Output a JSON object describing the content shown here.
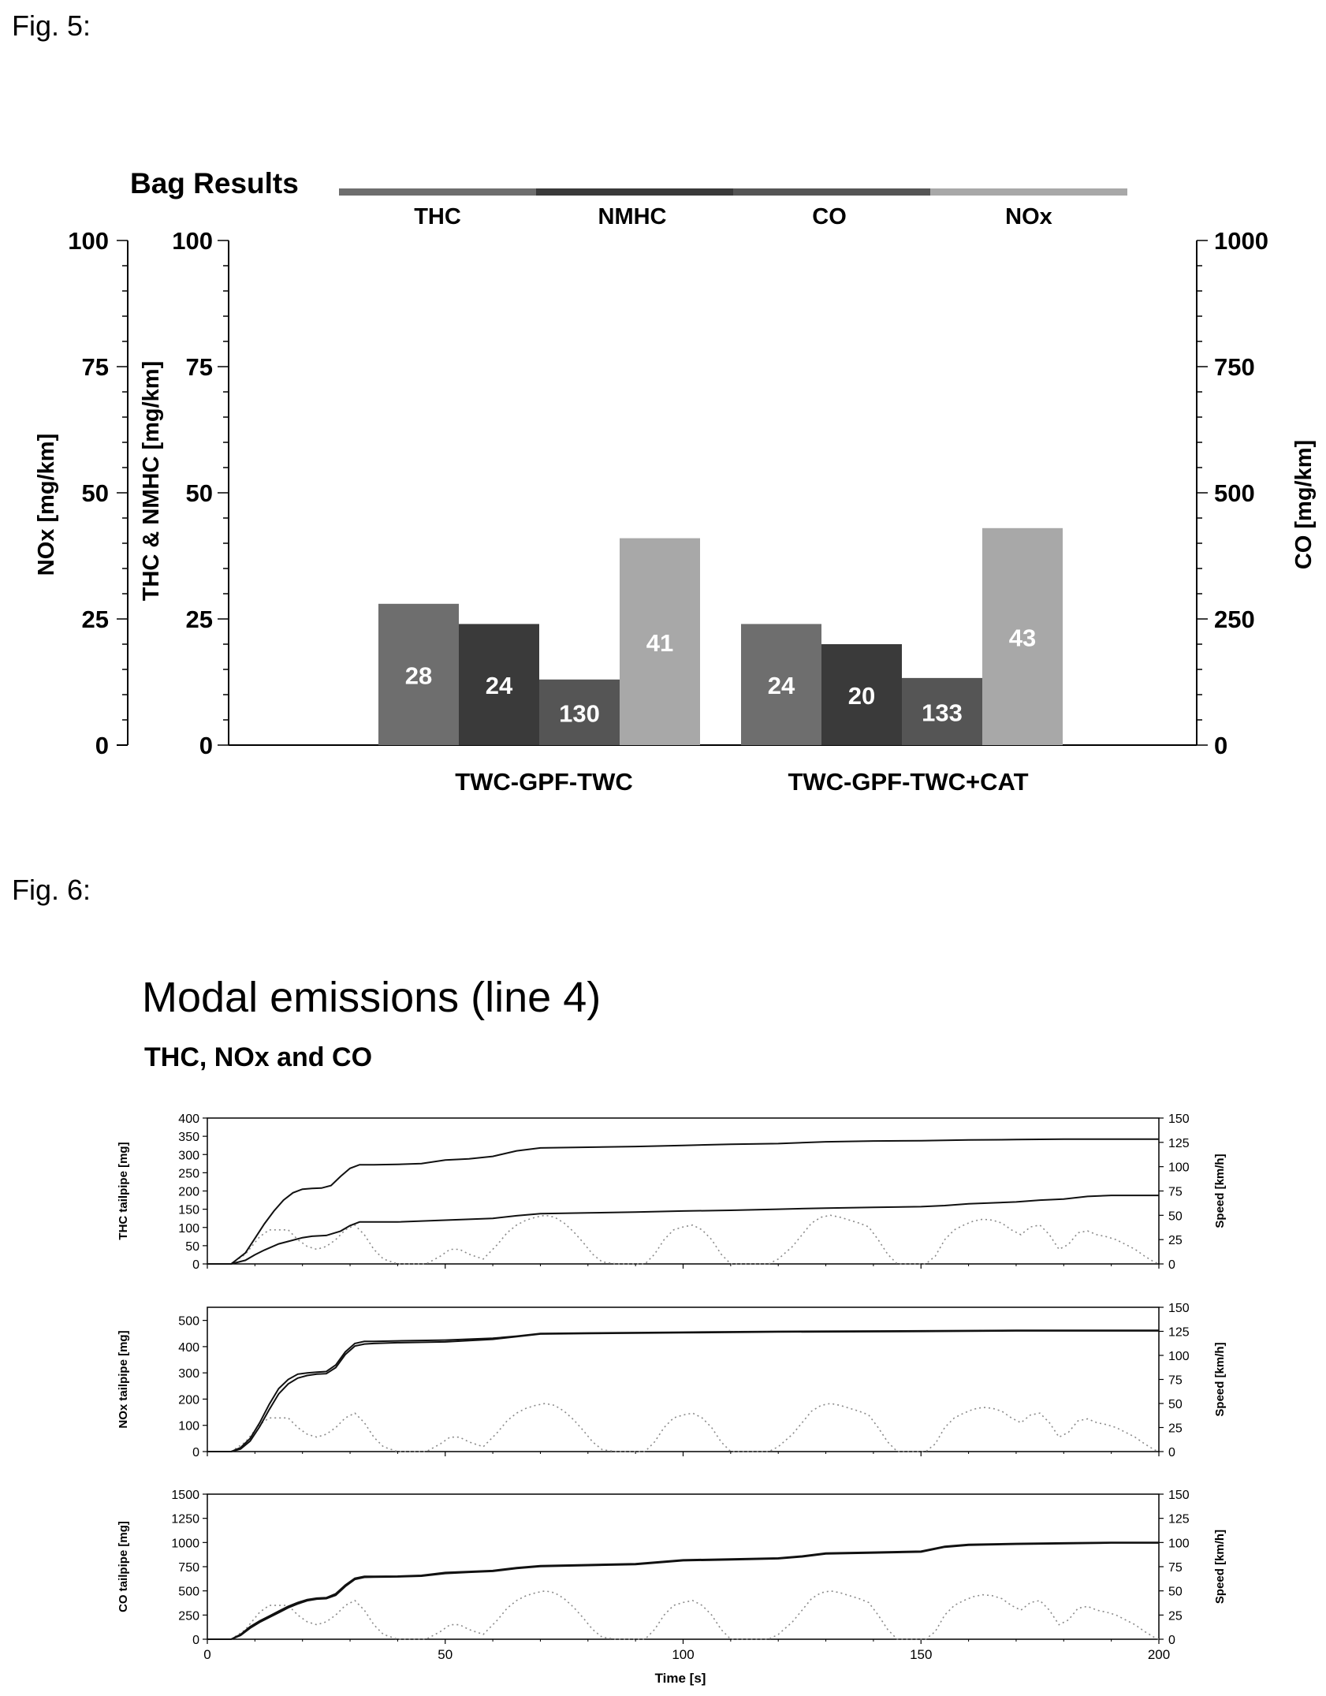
{
  "fig5_label": "Fig. 5:",
  "fig6_label": "Fig. 6:",
  "chart_data": [
    {
      "type": "bar",
      "title": "Bag Results",
      "legend": [
        "THC",
        "NMHC",
        "CO",
        "NOx"
      ],
      "legend_placement": "top",
      "categories": [
        "TWC-GPF-TWC",
        "TWC-GPF-TWC+CAT"
      ],
      "series": [
        {
          "name": "THC",
          "values": [
            28,
            24
          ],
          "axis": "THC & NMHC [mg/km]",
          "color": "#6e6e6e"
        },
        {
          "name": "NMHC",
          "values": [
            24,
            20
          ],
          "axis": "THC & NMHC [mg/km]",
          "color": "#3a3a3a"
        },
        {
          "name": "CO",
          "values": [
            130,
            133
          ],
          "axis": "CO [mg/km]",
          "color": "#555555"
        },
        {
          "name": "NOx",
          "values": [
            41,
            43
          ],
          "axis": "NOx [mg/km]",
          "color": "#a8a8a8"
        }
      ],
      "data_labels": [
        [
          "28",
          "24",
          "130",
          "41"
        ],
        [
          "24",
          "20",
          "133",
          "43"
        ]
      ],
      "ylabel_left_outer": "NOx [mg/km]",
      "ylabel_left_inner": "THC & NMHC [mg/km]",
      "ylabel_right": "CO [mg/km]",
      "ylim_left": [
        0,
        100
      ],
      "ylim_right": [
        0,
        1000
      ],
      "yticks_left": [
        "0",
        "25",
        "50",
        "75",
        "100"
      ],
      "yticks_right": [
        "0",
        "250",
        "500",
        "750",
        "1000"
      ],
      "grid": false
    },
    {
      "type": "line",
      "title": "Modal emissions (line 4)",
      "subtitle": "THC, NOx and CO",
      "xlabel": "Time [s]",
      "xlim": [
        0,
        200
      ],
      "xticks": [
        "0",
        "50",
        "100",
        "150",
        "200"
      ],
      "speed_axis": {
        "label": "Speed [km/h]",
        "ylim": [
          0,
          150
        ],
        "ticks": [
          "0",
          "25",
          "50",
          "75",
          "100",
          "125",
          "150"
        ]
      },
      "speed_profile": {
        "x": [
          0,
          5,
          8,
          11,
          13,
          15,
          17,
          19,
          21,
          23,
          25,
          27,
          29,
          31,
          33,
          35,
          37,
          40,
          43,
          46,
          49,
          51,
          53,
          55,
          58,
          61,
          63,
          65,
          67,
          69,
          71,
          73,
          75,
          77,
          79,
          81,
          83,
          86,
          89,
          92,
          94,
          96,
          98,
          100,
          102,
          104,
          106,
          108,
          110,
          113,
          116,
          118,
          120,
          123,
          125,
          127,
          129,
          131,
          133,
          135,
          137,
          139,
          141,
          143,
          145,
          148,
          151,
          153,
          155,
          157,
          159,
          161,
          163,
          165,
          167,
          169,
          171,
          173,
          175,
          177,
          179,
          181,
          183,
          185,
          187,
          189,
          191,
          193,
          195,
          197,
          199,
          200
        ],
        "y": [
          0,
          0,
          10,
          28,
          35,
          35,
          35,
          25,
          18,
          15,
          18,
          25,
          35,
          40,
          30,
          15,
          5,
          0,
          0,
          0,
          8,
          15,
          15,
          10,
          5,
          20,
          32,
          40,
          45,
          48,
          50,
          48,
          42,
          33,
          22,
          10,
          2,
          0,
          0,
          0,
          10,
          25,
          35,
          38,
          40,
          35,
          25,
          10,
          0,
          0,
          0,
          0,
          5,
          18,
          30,
          42,
          48,
          50,
          48,
          45,
          42,
          38,
          25,
          10,
          0,
          0,
          0,
          8,
          25,
          35,
          40,
          44,
          46,
          45,
          42,
          35,
          30,
          38,
          40,
          30,
          15,
          20,
          32,
          34,
          30,
          28,
          25,
          20,
          15,
          8,
          2,
          0
        ]
      },
      "panels": [
        {
          "ylabel": "THC tailpipe [mg]",
          "ylim": [
            0,
            400
          ],
          "yticks": [
            "0",
            "50",
            "100",
            "150",
            "200",
            "250",
            "300",
            "350",
            "400"
          ],
          "series": [
            {
              "x": [
                0,
                5,
                8,
                10,
                12,
                14,
                16,
                18,
                20,
                22,
                24,
                26,
                28,
                30,
                32,
                35,
                40,
                45,
                50,
                55,
                60,
                65,
                70,
                80,
                90,
                100,
                110,
                120,
                130,
                140,
                150,
                160,
                170,
                180,
                190,
                200
              ],
              "y": [
                0,
                0,
                30,
                70,
                110,
                145,
                175,
                195,
                205,
                207,
                208,
                215,
                240,
                262,
                272,
                272,
                273,
                275,
                285,
                288,
                295,
                310,
                318,
                320,
                322,
                325,
                328,
                330,
                335,
                337,
                338,
                340,
                341,
                342,
                342,
                342
              ]
            },
            {
              "x": [
                0,
                5,
                8,
                10,
                12,
                15,
                18,
                20,
                22,
                25,
                28,
                30,
                32,
                35,
                40,
                50,
                60,
                65,
                70,
                80,
                90,
                100,
                110,
                120,
                130,
                140,
                150,
                155,
                160,
                170,
                175,
                180,
                185,
                190,
                200
              ],
              "y": [
                0,
                0,
                10,
                25,
                38,
                55,
                65,
                72,
                76,
                78,
                90,
                105,
                115,
                115,
                115,
                120,
                125,
                132,
                138,
                140,
                142,
                145,
                147,
                150,
                153,
                155,
                157,
                160,
                165,
                170,
                175,
                178,
                185,
                188,
                188
              ]
            }
          ]
        },
        {
          "ylabel": "NOx tailpipe [mg]",
          "ylim": [
            0,
            550
          ],
          "yticks": [
            "0",
            "100",
            "200",
            "300",
            "400",
            "500"
          ],
          "series": [
            {
              "x": [
                0,
                5,
                7,
                9,
                11,
                13,
                15,
                17,
                19,
                21,
                23,
                25,
                27,
                29,
                31,
                33,
                35,
                40,
                50,
                60,
                65,
                70,
                80,
                100,
                120,
                150,
                170,
                200
              ],
              "y": [
                0,
                0,
                15,
                50,
                110,
                180,
                240,
                275,
                295,
                300,
                303,
                305,
                330,
                380,
                412,
                420,
                420,
                422,
                425,
                432,
                440,
                450,
                452,
                455,
                458,
                460,
                462,
                462
              ]
            },
            {
              "x": [
                0,
                5,
                7,
                9,
                11,
                13,
                15,
                17,
                19,
                21,
                23,
                25,
                27,
                29,
                31,
                33,
                35,
                40,
                50,
                60,
                65,
                70,
                80,
                100,
                120,
                150,
                170,
                200
              ],
              "y": [
                0,
                0,
                10,
                40,
                95,
                160,
                220,
                258,
                280,
                290,
                295,
                297,
                320,
                370,
                402,
                410,
                412,
                415,
                418,
                428,
                438,
                448,
                450,
                453,
                456,
                458,
                460,
                460
              ]
            }
          ]
        },
        {
          "ylabel": "CO tailpipe [mg]",
          "ylim": [
            0,
            1500
          ],
          "yticks": [
            "0",
            "250",
            "500",
            "750",
            "1000",
            "1250",
            "1500"
          ],
          "series": [
            {
              "x": [
                0,
                5,
                7,
                9,
                11,
                13,
                15,
                17,
                19,
                21,
                23,
                25,
                27,
                29,
                31,
                33,
                35,
                40,
                45,
                50,
                55,
                60,
                65,
                70,
                80,
                90,
                100,
                110,
                120,
                125,
                130,
                140,
                150,
                155,
                160,
                170,
                180,
                190,
                200
              ],
              "y": [
                0,
                0,
                50,
                130,
                190,
                240,
                290,
                340,
                380,
                410,
                425,
                430,
                470,
                560,
                630,
                650,
                650,
                652,
                660,
                690,
                700,
                710,
                740,
                760,
                770,
                780,
                820,
                830,
                840,
                860,
                890,
                900,
                910,
                960,
                980,
                990,
                995,
                1000,
                1000
              ]
            },
            {
              "x": [
                0,
                5,
                7,
                9,
                11,
                13,
                15,
                17,
                19,
                21,
                23,
                25,
                27,
                29,
                31,
                33,
                35,
                40,
                45,
                50,
                55,
                60,
                65,
                70,
                80,
                90,
                100,
                110,
                120,
                125,
                130,
                140,
                150,
                155,
                160,
                170,
                180,
                190,
                200
              ],
              "y": [
                0,
                0,
                40,
                115,
                175,
                225,
                275,
                325,
                365,
                398,
                415,
                420,
                455,
                545,
                618,
                640,
                642,
                645,
                652,
                680,
                692,
                702,
                732,
                752,
                762,
                772,
                812,
                822,
                832,
                852,
                882,
                892,
                902,
                952,
                972,
                982,
                988,
                995,
                995
              ]
            }
          ]
        }
      ]
    }
  ]
}
